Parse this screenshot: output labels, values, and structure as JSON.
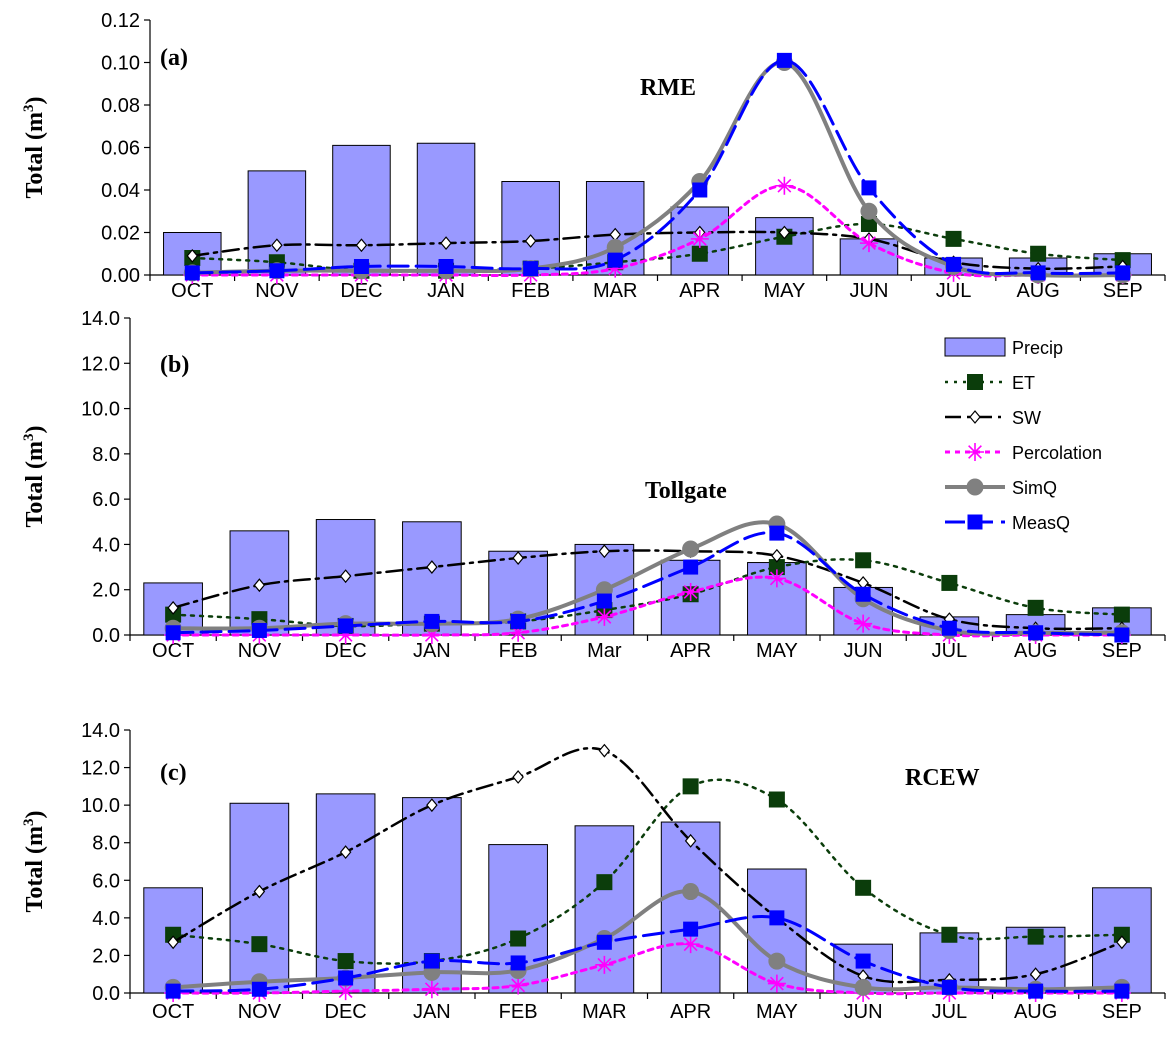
{
  "legend": [
    {
      "key": "Precip",
      "label": "Precip"
    },
    {
      "key": "ET",
      "label": "ET"
    },
    {
      "key": "SW",
      "label": "SW"
    },
    {
      "key": "Percolation",
      "label": "Percolation"
    },
    {
      "key": "SimQ",
      "label": "SimQ"
    },
    {
      "key": "MeasQ",
      "label": "MeasQ"
    }
  ],
  "colors": {
    "precip_fill": "#9999ff",
    "et": "#0b3d0b",
    "sw": "#000000",
    "percolation": "#ff00ff",
    "simq": "#808080",
    "measq": "#0000ff"
  },
  "chart_data": [
    {
      "type": "bar",
      "panel": "(a)",
      "title": "RME",
      "ylabel_main": "Total (m",
      "ylabel_sup": "3",
      "ylabel_tail": ")",
      "ylim": [
        0,
        0.12
      ],
      "yticks": [
        "0.00",
        "0.02",
        "0.04",
        "0.06",
        "0.08",
        "0.10",
        "0.12"
      ],
      "yticks_values": [
        0,
        0.02,
        0.04,
        0.06,
        0.08,
        0.1,
        0.12
      ],
      "categories": [
        "OCT",
        "NOV",
        "DEC",
        "JAN",
        "FEB",
        "MAR",
        "APR",
        "MAY",
        "JUN",
        "JUL",
        "AUG",
        "SEP"
      ],
      "series": [
        {
          "name": "Precip",
          "kind": "bar",
          "values": [
            0.02,
            0.049,
            0.061,
            0.062,
            0.044,
            0.044,
            0.032,
            0.027,
            0.017,
            0.008,
            0.008,
            0.01
          ]
        },
        {
          "name": "ET",
          "kind": "line",
          "values": [
            0.008,
            0.006,
            0.002,
            0.002,
            0.003,
            0.006,
            0.01,
            0.018,
            0.024,
            0.017,
            0.01,
            0.007
          ]
        },
        {
          "name": "SW",
          "kind": "line",
          "values": [
            0.009,
            0.014,
            0.014,
            0.015,
            0.016,
            0.019,
            0.02,
            0.02,
            0.017,
            0.006,
            0.003,
            0.004
          ]
        },
        {
          "name": "Percolation",
          "kind": "line",
          "values": [
            0.0,
            0.0,
            0.0,
            0.0,
            0.0,
            0.003,
            0.017,
            0.042,
            0.015,
            0.001,
            0.0,
            0.0
          ]
        },
        {
          "name": "SimQ",
          "kind": "line",
          "values": [
            0.001,
            0.002,
            0.002,
            0.002,
            0.003,
            0.013,
            0.044,
            0.1,
            0.03,
            0.004,
            0.0,
            0.0
          ]
        },
        {
          "name": "MeasQ",
          "kind": "line",
          "values": [
            0.001,
            0.002,
            0.004,
            0.004,
            0.003,
            0.007,
            0.04,
            0.101,
            0.041,
            0.005,
            0.001,
            0.001
          ]
        }
      ]
    },
    {
      "type": "bar",
      "panel": "(b)",
      "title": "Tollgate",
      "ylabel_main": "Total (m",
      "ylabel_sup": "3",
      "ylabel_tail": ")",
      "ylim": [
        0,
        14
      ],
      "yticks": [
        "0.0",
        "2.0",
        "4.0",
        "6.0",
        "8.0",
        "10.0",
        "12.0",
        "14.0"
      ],
      "yticks_values": [
        0,
        2,
        4,
        6,
        8,
        10,
        12,
        14
      ],
      "categories": [
        "OCT",
        "NOV",
        "DEC",
        "JAN",
        "FEB",
        "Mar",
        "APR",
        "MAY",
        "JUN",
        "JUL",
        "AUG",
        "SEP"
      ],
      "series": [
        {
          "name": "Precip",
          "kind": "bar",
          "values": [
            2.3,
            4.6,
            5.1,
            5.0,
            3.7,
            4.0,
            3.3,
            3.2,
            2.1,
            0.8,
            0.9,
            1.2
          ]
        },
        {
          "name": "ET",
          "kind": "line",
          "values": [
            0.9,
            0.7,
            0.4,
            0.5,
            0.6,
            1.1,
            1.8,
            3.0,
            3.3,
            2.3,
            1.2,
            0.9
          ]
        },
        {
          "name": "SW",
          "kind": "line",
          "values": [
            1.2,
            2.2,
            2.6,
            3.0,
            3.4,
            3.7,
            3.7,
            3.5,
            2.3,
            0.7,
            0.3,
            0.3
          ]
        },
        {
          "name": "Percolation",
          "kind": "line",
          "values": [
            0.0,
            0.0,
            0.0,
            0.0,
            0.1,
            0.8,
            1.9,
            2.5,
            0.5,
            0.0,
            0.0,
            0.0
          ]
        },
        {
          "name": "SimQ",
          "kind": "line",
          "values": [
            0.3,
            0.3,
            0.5,
            0.5,
            0.7,
            2.0,
            3.8,
            4.9,
            1.6,
            0.2,
            0.1,
            0.1
          ]
        },
        {
          "name": "MeasQ",
          "kind": "line",
          "values": [
            0.1,
            0.2,
            0.4,
            0.6,
            0.6,
            1.5,
            3.0,
            4.5,
            1.8,
            0.3,
            0.1,
            0.0
          ]
        }
      ]
    },
    {
      "type": "bar",
      "panel": "(c)",
      "title": "RCEW",
      "ylabel_main": "Total (m",
      "ylabel_sup": "3",
      "ylabel_tail": ")",
      "ylim": [
        0,
        14
      ],
      "yticks": [
        "0.0",
        "2.0",
        "4.0",
        "6.0",
        "8.0",
        "10.0",
        "12.0",
        "14.0"
      ],
      "yticks_values": [
        0,
        2,
        4,
        6,
        8,
        10,
        12,
        14
      ],
      "categories": [
        "OCT",
        "NOV",
        "DEC",
        "JAN",
        "FEB",
        "MAR",
        "APR",
        "MAY",
        "JUN",
        "JUL",
        "AUG",
        "SEP"
      ],
      "series": [
        {
          "name": "Precip",
          "kind": "bar",
          "values": [
            5.6,
            10.1,
            10.6,
            10.4,
            7.9,
            8.9,
            9.1,
            6.6,
            2.6,
            3.2,
            3.5,
            5.6
          ]
        },
        {
          "name": "ET",
          "kind": "line",
          "values": [
            3.1,
            2.6,
            1.7,
            1.7,
            2.9,
            5.9,
            11.0,
            10.3,
            5.6,
            3.1,
            3.0,
            3.1
          ]
        },
        {
          "name": "SW",
          "kind": "line",
          "values": [
            2.7,
            5.4,
            7.5,
            10.0,
            11.5,
            12.9,
            8.1,
            4.0,
            0.9,
            0.7,
            1.0,
            2.7
          ]
        },
        {
          "name": "Percolation",
          "kind": "line",
          "values": [
            0.0,
            0.0,
            0.1,
            0.2,
            0.4,
            1.5,
            2.6,
            0.5,
            0.0,
            0.0,
            0.0,
            0.0
          ]
        },
        {
          "name": "SimQ",
          "kind": "line",
          "values": [
            0.3,
            0.6,
            0.8,
            1.1,
            1.2,
            2.9,
            5.4,
            1.7,
            0.3,
            0.3,
            0.2,
            0.3
          ]
        },
        {
          "name": "MeasQ",
          "kind": "line",
          "values": [
            0.1,
            0.2,
            0.8,
            1.7,
            1.6,
            2.7,
            3.4,
            4.0,
            1.7,
            0.3,
            0.1,
            0.1
          ]
        }
      ]
    }
  ]
}
